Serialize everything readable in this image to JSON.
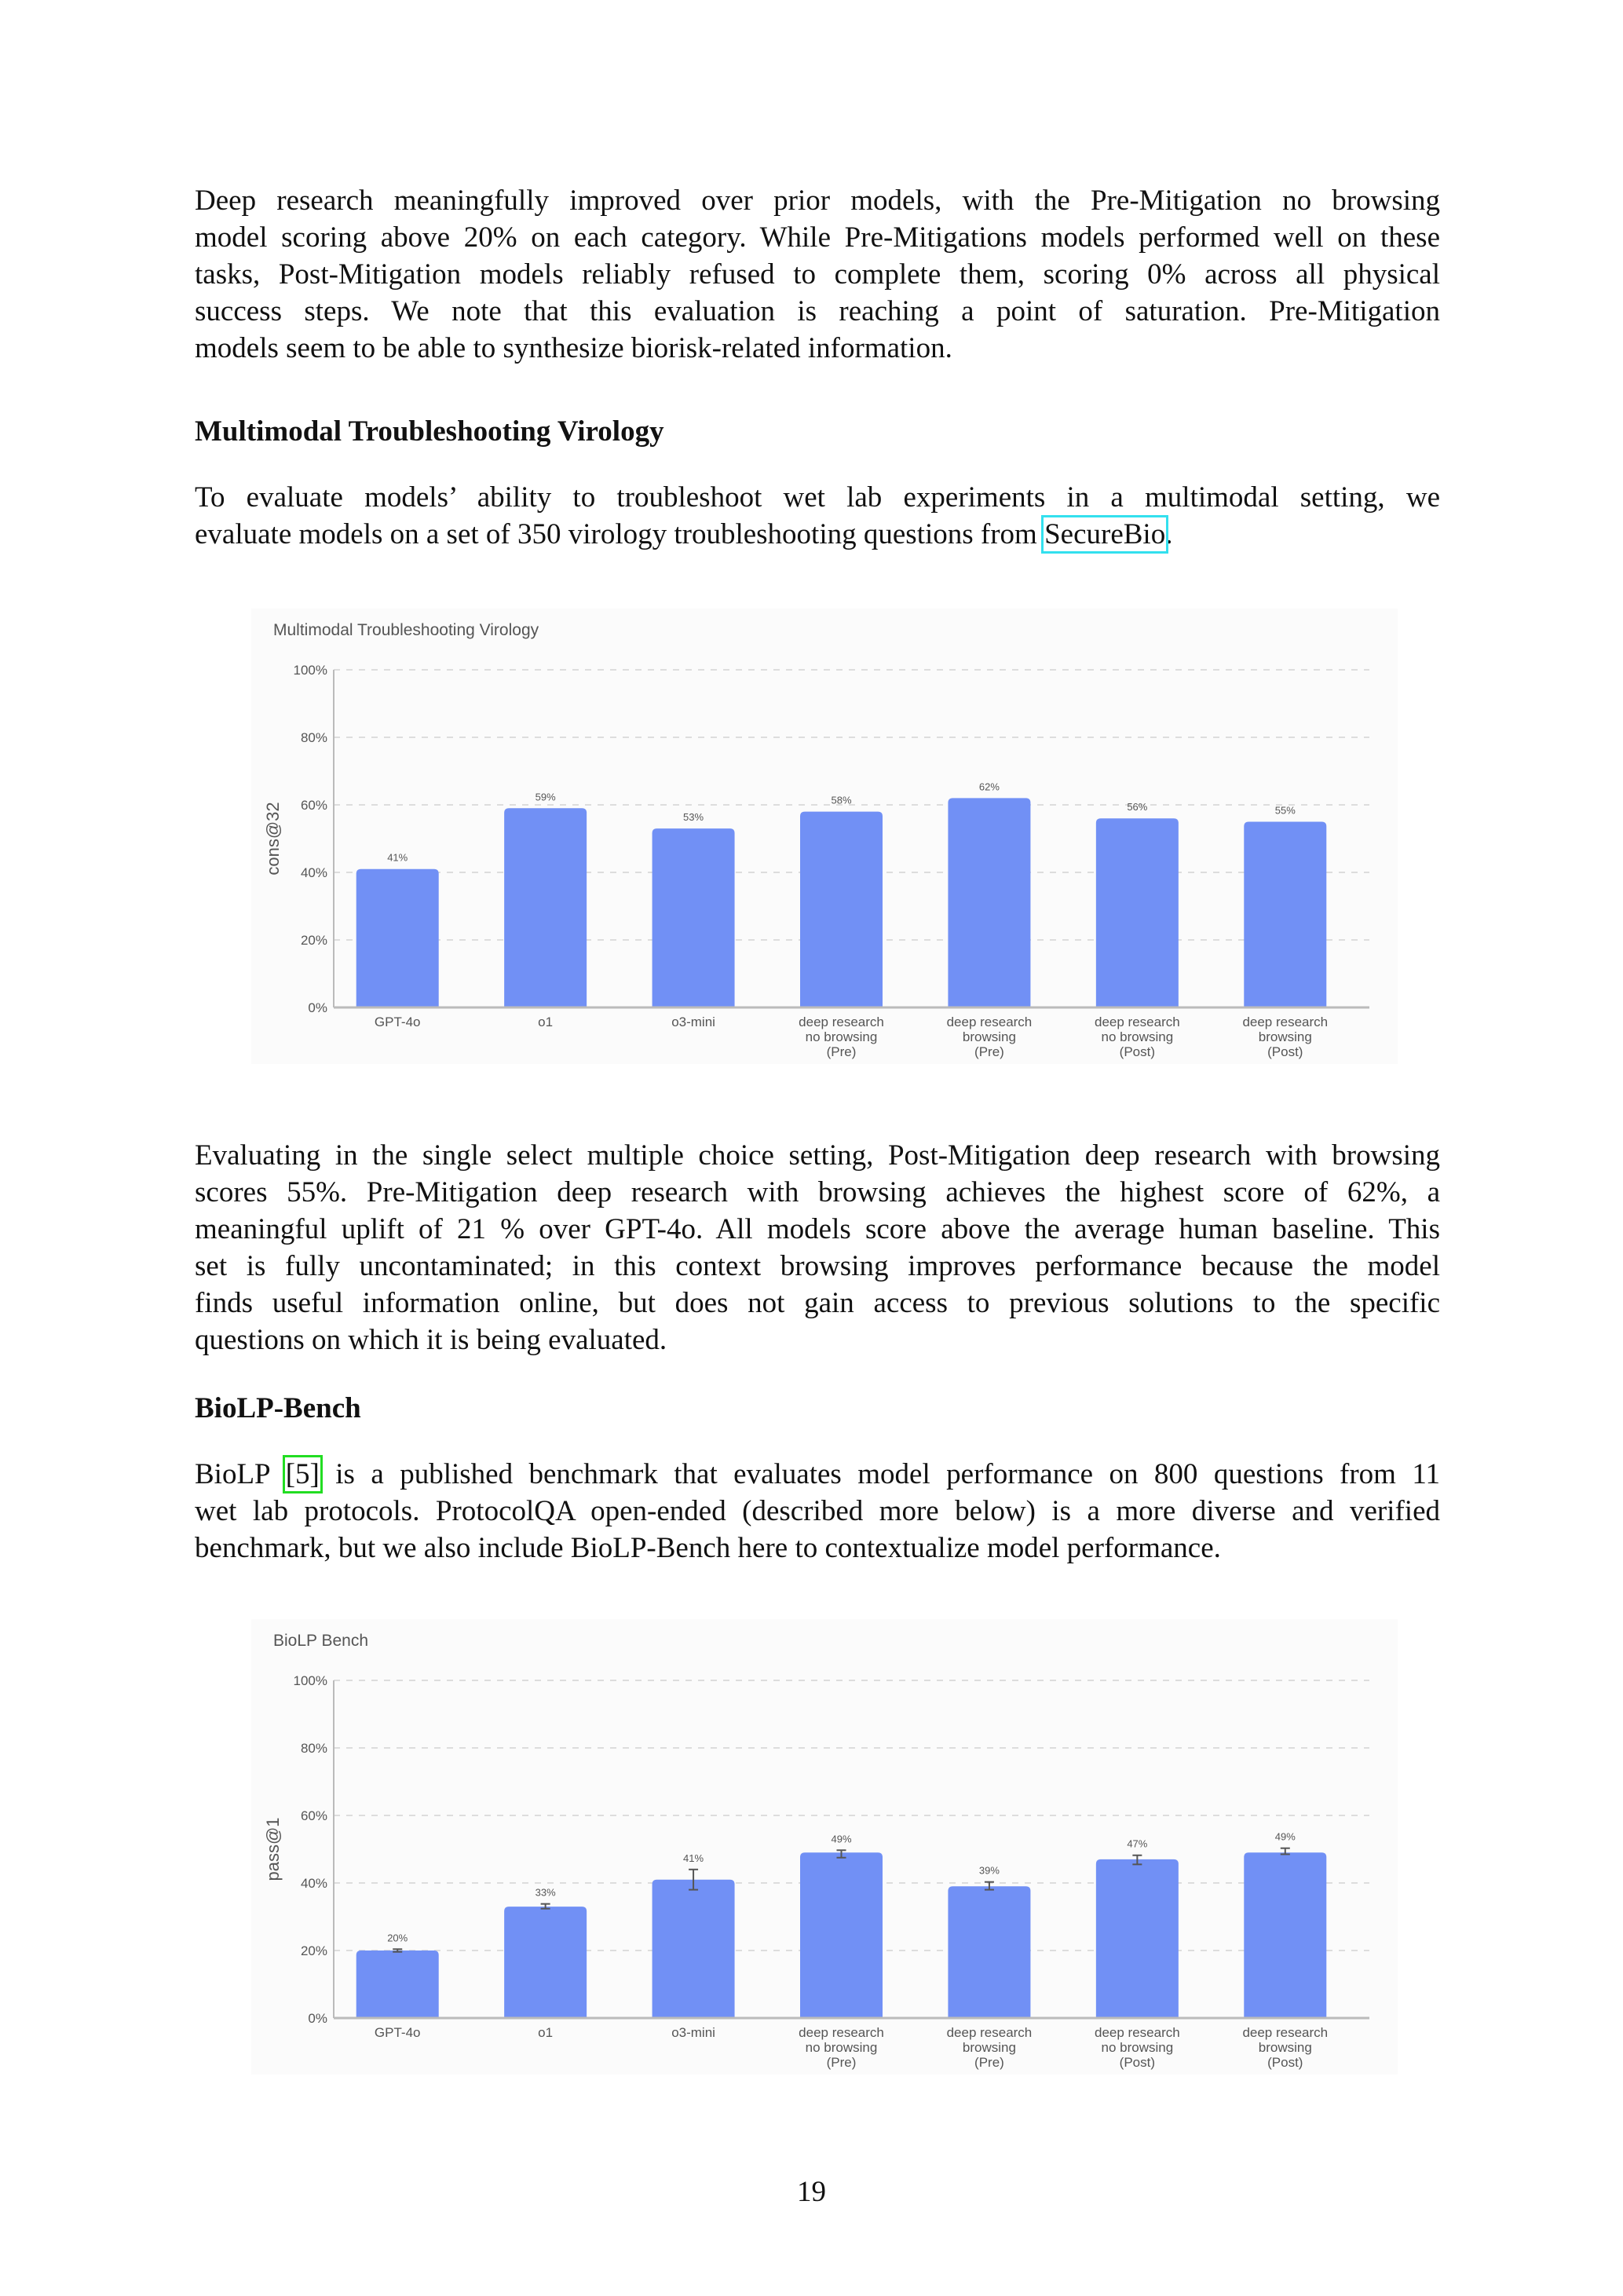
{
  "paragraphs": {
    "p1": [
      "Deep research meaningfully improved over prior models, with the Pre-Mitigation no browsing",
      "model scoring above 20% on each category. While Pre-Mitigations models performed well on these",
      "tasks, Post-Mitigation models reliably refused to complete them, scoring 0% across all physical",
      "success steps.  We note that this evaluation is reaching a point of saturation.  Pre-Mitigation",
      "models seem to be able to synthesize biorisk-related information."
    ],
    "h1": "Multimodal Troubleshooting Virology",
    "p2": {
      "line1": "To evaluate models’ ability to troubleshoot wet lab experiments in a multimodal setting, we",
      "line2_pre": "evaluate models on a set of 350 virology troubleshooting questions from ",
      "line2_link": "SecureBio",
      "line2_post": "."
    },
    "p3": [
      "Evaluating in the single select multiple choice setting, Post-Mitigation deep research with browsing",
      "scores 55%.  Pre-Mitigation deep research with browsing achieves the highest score of 62%, a",
      "meaningful uplift of  21 % over GPT-4o.  All models score above the average human baseline.  This",
      "set is fully uncontaminated; in this context browsing improves performance because the model",
      "finds useful information online, but does not gain access to previous solutions to the specific",
      "questions on which it is being evaluated."
    ],
    "h2": "BioLP-Bench",
    "p4": {
      "line1_pre": "BioLP ",
      "line1_link": "[5]",
      "line1_post": " is a published benchmark that evaluates model performance on 800 questions from 11",
      "line2": "wet lab protocols.  ProtocolQA open-ended (described more below) is a more diverse and verified",
      "line3": "benchmark, but we also include BioLP-Bench here to contextualize model performance."
    }
  },
  "page_number": "19",
  "colors": {
    "bar": "#7190f5",
    "link_cyan": "#33e0ee",
    "link_green": "#22dd22"
  },
  "chart_data": [
    {
      "type": "bar",
      "title": "Multimodal Troubleshooting Virology",
      "ylabel": "cons@32",
      "xlabel": "",
      "ylim": [
        0,
        100
      ],
      "yticks": [
        "0%",
        "20%",
        "40%",
        "60%",
        "80%",
        "100%"
      ],
      "grid": true,
      "categories": [
        [
          "GPT-4o"
        ],
        [
          "o1"
        ],
        [
          "o3-mini"
        ],
        [
          "deep research",
          "no browsing",
          "(Pre)"
        ],
        [
          "deep research",
          "browsing",
          "(Pre)"
        ],
        [
          "deep research",
          "no browsing",
          "(Post)"
        ],
        [
          "deep research",
          "browsing",
          "(Post)"
        ]
      ],
      "values": [
        41,
        59,
        53,
        58,
        62,
        56,
        55
      ],
      "labels": [
        "41%",
        "59%",
        "53%",
        "58%",
        "62%",
        "56%",
        "55%"
      ]
    },
    {
      "type": "bar",
      "title": "BioLP Bench",
      "ylabel": "pass@1",
      "xlabel": "",
      "ylim": [
        0,
        100
      ],
      "yticks": [
        "0%",
        "20%",
        "40%",
        "60%",
        "80%",
        "100%"
      ],
      "grid": true,
      "categories": [
        [
          "GPT-4o"
        ],
        [
          "o1"
        ],
        [
          "o3-mini"
        ],
        [
          "deep research",
          "no browsing",
          "(Pre)"
        ],
        [
          "deep research",
          "browsing",
          "(Pre)"
        ],
        [
          "deep research",
          "no browsing",
          "(Post)"
        ],
        [
          "deep research",
          "browsing",
          "(Post)"
        ]
      ],
      "values": [
        20,
        33,
        41,
        49,
        39,
        47,
        49
      ],
      "labels": [
        "20%",
        "33%",
        "41%",
        "49%",
        "39%",
        "47%",
        "49%"
      ],
      "error_bars": [
        [
          19.6,
          20.4
        ],
        [
          32.4,
          33.8
        ],
        [
          38,
          44
        ],
        [
          47.5,
          49.7
        ],
        [
          38,
          40.3
        ],
        [
          45.5,
          48.2
        ],
        [
          48.5,
          50.3
        ]
      ]
    }
  ]
}
